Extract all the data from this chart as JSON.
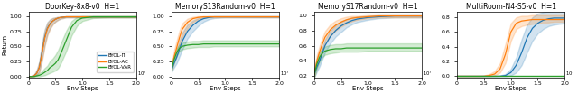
{
  "titles": [
    "DoorKey-8x8-v0  H=1",
    "MemoryS13Random-v0  H=1",
    "MemoryS17Random-v0  H=1",
    "MultiRoom-N4-S5-v0  H=1"
  ],
  "xlabel": "Env Steps",
  "ylabel": "Return",
  "colors": {
    "pi": "#1f77b4",
    "ac": "#ff7f0e",
    "var": "#2ca02c"
  },
  "legend_labels": [
    "BYOL-Π",
    "BYOL-AC",
    "BYOL-VAR"
  ],
  "figsize": [
    6.4,
    1.04
  ],
  "dpi": 100,
  "doorkey": {
    "x": [
      0.0,
      0.5,
      1.0,
      1.5,
      2.0,
      2.5,
      3.0,
      3.5,
      4.0,
      4.5,
      5.0,
      5.5,
      6.0,
      7.0,
      8.0,
      9.0,
      10.0,
      12.0,
      15.0,
      20.0
    ],
    "pi_mean": [
      0.0,
      0.0,
      0.01,
      0.05,
      0.15,
      0.4,
      0.65,
      0.8,
      0.88,
      0.92,
      0.95,
      0.97,
      0.98,
      0.99,
      0.99,
      0.99,
      0.99,
      0.99,
      0.99,
      0.99
    ],
    "pi_lo": [
      0.0,
      0.0,
      0.0,
      0.02,
      0.08,
      0.28,
      0.52,
      0.7,
      0.8,
      0.87,
      0.91,
      0.94,
      0.96,
      0.98,
      0.98,
      0.98,
      0.98,
      0.98,
      0.98,
      0.98
    ],
    "pi_hi": [
      0.0,
      0.01,
      0.03,
      0.1,
      0.25,
      0.55,
      0.78,
      0.9,
      0.95,
      0.97,
      0.98,
      0.99,
      0.99,
      1.0,
      1.0,
      1.0,
      1.0,
      1.0,
      1.0,
      1.0
    ],
    "ac_mean": [
      0.0,
      0.0,
      0.01,
      0.05,
      0.15,
      0.38,
      0.63,
      0.79,
      0.87,
      0.92,
      0.95,
      0.97,
      0.98,
      0.99,
      0.99,
      0.99,
      0.99,
      0.99,
      0.99,
      0.99
    ],
    "ac_lo": [
      0.0,
      0.0,
      0.0,
      0.02,
      0.07,
      0.25,
      0.5,
      0.68,
      0.79,
      0.86,
      0.91,
      0.94,
      0.96,
      0.98,
      0.98,
      0.98,
      0.98,
      0.98,
      0.98,
      0.98
    ],
    "ac_hi": [
      0.0,
      0.01,
      0.03,
      0.1,
      0.24,
      0.52,
      0.76,
      0.89,
      0.94,
      0.97,
      0.98,
      0.99,
      0.99,
      1.0,
      1.0,
      1.0,
      1.0,
      1.0,
      1.0,
      1.0
    ],
    "var_mean": [
      0.0,
      0.0,
      0.0,
      0.01,
      0.02,
      0.04,
      0.07,
      0.1,
      0.15,
      0.18,
      0.22,
      0.28,
      0.38,
      0.6,
      0.82,
      0.93,
      0.97,
      0.99,
      0.99,
      0.99
    ],
    "var_lo": [
      0.0,
      0.0,
      0.0,
      0.0,
      0.0,
      0.01,
      0.02,
      0.04,
      0.06,
      0.08,
      0.1,
      0.14,
      0.22,
      0.42,
      0.68,
      0.84,
      0.92,
      0.97,
      0.98,
      0.98
    ],
    "var_hi": [
      0.0,
      0.0,
      0.01,
      0.03,
      0.05,
      0.09,
      0.14,
      0.18,
      0.26,
      0.3,
      0.36,
      0.44,
      0.55,
      0.76,
      0.92,
      0.99,
      1.0,
      1.0,
      1.0,
      1.0
    ],
    "ylim": [
      -0.02,
      1.08
    ],
    "yticks": [
      0.0,
      0.25,
      0.5,
      0.75,
      1.0
    ]
  },
  "memory13": {
    "x": [
      0.0,
      0.2,
      0.5,
      1.0,
      1.5,
      2.0,
      3.0,
      4.0,
      5.0,
      6.0,
      7.0,
      8.0,
      10.0,
      15.0,
      20.0
    ],
    "pi_mean": [
      0.1,
      0.15,
      0.22,
      0.32,
      0.45,
      0.58,
      0.75,
      0.85,
      0.92,
      0.96,
      0.98,
      0.99,
      0.99,
      0.99,
      0.99
    ],
    "pi_lo": [
      0.07,
      0.1,
      0.15,
      0.22,
      0.33,
      0.44,
      0.63,
      0.75,
      0.84,
      0.91,
      0.95,
      0.97,
      0.98,
      0.98,
      0.98
    ],
    "pi_hi": [
      0.14,
      0.22,
      0.31,
      0.44,
      0.58,
      0.72,
      0.86,
      0.93,
      0.97,
      0.99,
      1.0,
      1.0,
      1.0,
      1.0,
      1.0
    ],
    "ac_mean": [
      0.12,
      0.2,
      0.32,
      0.48,
      0.64,
      0.78,
      0.9,
      0.96,
      0.98,
      0.99,
      0.99,
      0.99,
      0.99,
      0.99,
      0.99
    ],
    "ac_lo": [
      0.08,
      0.14,
      0.23,
      0.36,
      0.5,
      0.64,
      0.8,
      0.9,
      0.95,
      0.98,
      0.98,
      0.98,
      0.98,
      0.98,
      0.98
    ],
    "ac_hi": [
      0.17,
      0.28,
      0.43,
      0.6,
      0.76,
      0.88,
      0.96,
      0.99,
      1.0,
      1.0,
      1.0,
      1.0,
      1.0,
      1.0,
      1.0
    ],
    "var_mean": [
      0.12,
      0.18,
      0.28,
      0.4,
      0.47,
      0.5,
      0.52,
      0.53,
      0.53,
      0.54,
      0.54,
      0.54,
      0.54,
      0.54,
      0.54
    ],
    "var_lo": [
      0.09,
      0.14,
      0.22,
      0.34,
      0.42,
      0.45,
      0.47,
      0.48,
      0.49,
      0.49,
      0.49,
      0.5,
      0.5,
      0.5,
      0.5
    ],
    "var_hi": [
      0.16,
      0.24,
      0.35,
      0.47,
      0.53,
      0.56,
      0.58,
      0.59,
      0.59,
      0.6,
      0.6,
      0.6,
      0.6,
      0.6,
      0.6
    ],
    "ylim": [
      -0.02,
      1.08
    ],
    "yticks": [
      0.0,
      0.25,
      0.5,
      0.75,
      1.0
    ]
  },
  "memory17": {
    "x": [
      0.0,
      0.2,
      0.5,
      1.0,
      1.5,
      2.0,
      3.0,
      4.0,
      5.0,
      6.0,
      7.0,
      8.0,
      10.0,
      12.0,
      15.0,
      20.0
    ],
    "pi_mean": [
      0.22,
      0.26,
      0.32,
      0.4,
      0.5,
      0.6,
      0.72,
      0.8,
      0.86,
      0.9,
      0.93,
      0.95,
      0.97,
      0.98,
      0.99,
      0.99
    ],
    "pi_lo": [
      0.18,
      0.21,
      0.26,
      0.33,
      0.42,
      0.51,
      0.63,
      0.72,
      0.78,
      0.84,
      0.88,
      0.91,
      0.94,
      0.96,
      0.97,
      0.97
    ],
    "pi_hi": [
      0.27,
      0.32,
      0.39,
      0.48,
      0.58,
      0.68,
      0.8,
      0.87,
      0.92,
      0.95,
      0.97,
      0.98,
      0.99,
      1.0,
      1.0,
      1.0
    ],
    "ac_mean": [
      0.23,
      0.3,
      0.4,
      0.52,
      0.62,
      0.71,
      0.81,
      0.87,
      0.91,
      0.94,
      0.96,
      0.97,
      0.98,
      0.99,
      0.99,
      0.99
    ],
    "ac_lo": [
      0.18,
      0.24,
      0.33,
      0.44,
      0.54,
      0.62,
      0.73,
      0.8,
      0.85,
      0.89,
      0.92,
      0.94,
      0.96,
      0.97,
      0.97,
      0.97
    ],
    "ac_hi": [
      0.29,
      0.37,
      0.48,
      0.6,
      0.7,
      0.79,
      0.88,
      0.93,
      0.96,
      0.98,
      0.99,
      0.99,
      1.0,
      1.0,
      1.0,
      1.0
    ],
    "var_mean": [
      0.23,
      0.28,
      0.36,
      0.45,
      0.5,
      0.53,
      0.55,
      0.56,
      0.56,
      0.57,
      0.57,
      0.57,
      0.57,
      0.57,
      0.57,
      0.57
    ],
    "var_lo": [
      0.19,
      0.23,
      0.3,
      0.39,
      0.45,
      0.48,
      0.5,
      0.51,
      0.52,
      0.52,
      0.52,
      0.52,
      0.53,
      0.53,
      0.53,
      0.53
    ],
    "var_hi": [
      0.28,
      0.34,
      0.43,
      0.52,
      0.56,
      0.59,
      0.61,
      0.62,
      0.62,
      0.63,
      0.63,
      0.63,
      0.63,
      0.63,
      0.63,
      0.63
    ],
    "ylim": [
      0.18,
      1.05
    ],
    "yticks": [
      0.2,
      0.4,
      0.6,
      0.8,
      1.0
    ]
  },
  "multiroom": {
    "x": [
      0.0,
      1.0,
      2.0,
      3.0,
      4.0,
      5.0,
      6.0,
      7.0,
      8.0,
      9.0,
      10.0,
      11.0,
      12.0,
      13.0,
      14.0,
      15.0,
      16.0,
      17.0,
      18.0,
      19.0,
      20.0
    ],
    "pi_mean": [
      0.0,
      0.0,
      0.0,
      0.0,
      0.0,
      0.0,
      0.0,
      0.0,
      0.0,
      0.01,
      0.05,
      0.15,
      0.32,
      0.52,
      0.65,
      0.72,
      0.76,
      0.78,
      0.79,
      0.79,
      0.79
    ],
    "pi_lo": [
      0.0,
      0.0,
      0.0,
      0.0,
      0.0,
      0.0,
      0.0,
      0.0,
      0.0,
      0.0,
      0.01,
      0.05,
      0.15,
      0.32,
      0.48,
      0.58,
      0.64,
      0.68,
      0.7,
      0.71,
      0.72
    ],
    "pi_hi": [
      0.0,
      0.0,
      0.0,
      0.0,
      0.0,
      0.0,
      0.0,
      0.0,
      0.01,
      0.03,
      0.1,
      0.26,
      0.5,
      0.7,
      0.8,
      0.85,
      0.87,
      0.88,
      0.89,
      0.89,
      0.89
    ],
    "ac_mean": [
      0.0,
      0.0,
      0.0,
      0.0,
      0.0,
      0.0,
      0.01,
      0.03,
      0.1,
      0.3,
      0.6,
      0.72,
      0.75,
      0.76,
      0.77,
      0.77,
      0.77,
      0.77,
      0.77,
      0.77,
      0.77
    ],
    "ac_lo": [
      0.0,
      0.0,
      0.0,
      0.0,
      0.0,
      0.0,
      0.0,
      0.01,
      0.05,
      0.18,
      0.48,
      0.64,
      0.68,
      0.7,
      0.71,
      0.72,
      0.73,
      0.73,
      0.74,
      0.74,
      0.74
    ],
    "ac_hi": [
      0.0,
      0.0,
      0.0,
      0.0,
      0.0,
      0.01,
      0.03,
      0.07,
      0.18,
      0.44,
      0.72,
      0.8,
      0.82,
      0.82,
      0.83,
      0.83,
      0.83,
      0.83,
      0.83,
      0.83,
      0.83
    ],
    "var_mean": [
      0.0,
      0.0,
      0.0,
      0.0,
      0.0,
      0.0,
      0.0,
      0.0,
      0.0,
      0.0,
      0.0,
      0.0,
      0.0,
      0.0,
      0.0,
      0.0,
      0.0,
      0.0,
      0.0,
      0.0,
      0.0
    ],
    "var_lo": [
      0.0,
      0.0,
      0.0,
      0.0,
      0.0,
      0.0,
      0.0,
      0.0,
      0.0,
      0.0,
      0.0,
      0.0,
      0.0,
      0.0,
      0.0,
      0.0,
      0.0,
      0.0,
      0.0,
      0.0,
      0.0
    ],
    "var_hi": [
      0.0,
      0.0,
      0.0,
      0.0,
      0.0,
      0.0,
      0.0,
      0.0,
      0.0,
      0.0,
      0.0,
      0.0,
      0.0,
      0.0,
      0.0,
      0.0,
      0.0,
      0.0,
      0.0,
      0.0,
      0.0
    ],
    "ylim": [
      -0.02,
      0.88
    ],
    "yticks": [
      0.0,
      0.2,
      0.4,
      0.6,
      0.8
    ]
  }
}
